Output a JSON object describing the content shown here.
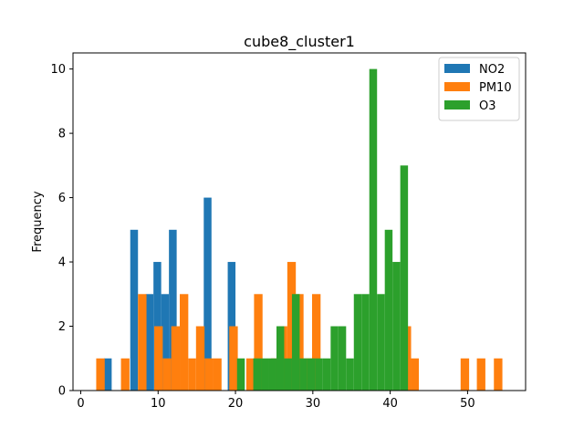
{
  "chart_data": {
    "type": "histogram",
    "title": "cube8_cluster1",
    "xlabel": "",
    "ylabel": "Frequency",
    "xlim": [
      -1,
      57.5
    ],
    "ylim": [
      0,
      10.5
    ],
    "xticks": [
      0,
      10,
      20,
      30,
      40,
      50
    ],
    "yticks": [
      0,
      2,
      4,
      6,
      8,
      10
    ],
    "grid": false,
    "legend_position": "top-right",
    "series": [
      {
        "name": "NO2",
        "color": "#1f77b4",
        "bins": [
          {
            "x0": 3.0,
            "x1": 4.0,
            "count": 1
          },
          {
            "x0": 6.4,
            "x1": 7.4,
            "count": 5
          },
          {
            "x0": 8.4,
            "x1": 9.4,
            "count": 3
          },
          {
            "x0": 9.4,
            "x1": 10.4,
            "count": 4
          },
          {
            "x0": 10.4,
            "x1": 11.4,
            "count": 3
          },
          {
            "x0": 11.4,
            "x1": 12.4,
            "count": 5
          },
          {
            "x0": 15.9,
            "x1": 16.9,
            "count": 6
          },
          {
            "x0": 19.0,
            "x1": 20.0,
            "count": 4
          }
        ]
      },
      {
        "name": "PM10",
        "color": "#ff7f0e",
        "bins": [
          {
            "x0": 2.0,
            "x1": 3.1,
            "count": 1
          },
          {
            "x0": 5.2,
            "x1": 6.3,
            "count": 1
          },
          {
            "x0": 7.4,
            "x1": 8.5,
            "count": 3
          },
          {
            "x0": 9.5,
            "x1": 10.6,
            "count": 2
          },
          {
            "x0": 10.6,
            "x1": 11.7,
            "count": 1
          },
          {
            "x0": 11.7,
            "x1": 12.8,
            "count": 2
          },
          {
            "x0": 12.8,
            "x1": 13.9,
            "count": 3
          },
          {
            "x0": 13.9,
            "x1": 14.9,
            "count": 1
          },
          {
            "x0": 14.9,
            "x1": 16.0,
            "count": 2
          },
          {
            "x0": 16.0,
            "x1": 17.1,
            "count": 1
          },
          {
            "x0": 17.1,
            "x1": 18.2,
            "count": 1
          },
          {
            "x0": 19.2,
            "x1": 20.3,
            "count": 2
          },
          {
            "x0": 21.4,
            "x1": 22.4,
            "count": 1
          },
          {
            "x0": 22.4,
            "x1": 23.5,
            "count": 3
          },
          {
            "x0": 24.6,
            "x1": 25.6,
            "count": 1
          },
          {
            "x0": 25.6,
            "x1": 26.7,
            "count": 2
          },
          {
            "x0": 26.7,
            "x1": 27.8,
            "count": 4
          },
          {
            "x0": 27.8,
            "x1": 28.8,
            "count": 3
          },
          {
            "x0": 28.8,
            "x1": 29.9,
            "count": 1
          },
          {
            "x0": 29.9,
            "x1": 31.0,
            "count": 3
          },
          {
            "x0": 41.6,
            "x1": 42.7,
            "count": 2
          },
          {
            "x0": 42.7,
            "x1": 43.7,
            "count": 1
          },
          {
            "x0": 49.1,
            "x1": 50.2,
            "count": 1
          },
          {
            "x0": 51.2,
            "x1": 52.3,
            "count": 1
          },
          {
            "x0": 53.4,
            "x1": 54.5,
            "count": 1
          }
        ]
      },
      {
        "name": "O3",
        "color": "#2ca02c",
        "bins": [
          {
            "x0": 20.2,
            "x1": 21.2,
            "count": 1
          },
          {
            "x0": 22.3,
            "x1": 23.3,
            "count": 1
          },
          {
            "x0": 23.3,
            "x1": 24.3,
            "count": 1
          },
          {
            "x0": 24.3,
            "x1": 25.3,
            "count": 1
          },
          {
            "x0": 25.3,
            "x1": 26.3,
            "count": 2
          },
          {
            "x0": 26.3,
            "x1": 27.3,
            "count": 1
          },
          {
            "x0": 27.3,
            "x1": 28.3,
            "count": 3
          },
          {
            "x0": 28.3,
            "x1": 29.3,
            "count": 1
          },
          {
            "x0": 29.3,
            "x1": 30.3,
            "count": 1
          },
          {
            "x0": 30.3,
            "x1": 31.3,
            "count": 1
          },
          {
            "x0": 31.3,
            "x1": 32.3,
            "count": 1
          },
          {
            "x0": 32.3,
            "x1": 33.3,
            "count": 2
          },
          {
            "x0": 33.3,
            "x1": 34.3,
            "count": 2
          },
          {
            "x0": 34.3,
            "x1": 35.3,
            "count": 1
          },
          {
            "x0": 35.3,
            "x1": 36.3,
            "count": 3
          },
          {
            "x0": 36.3,
            "x1": 37.3,
            "count": 3
          },
          {
            "x0": 37.3,
            "x1": 38.3,
            "count": 10
          },
          {
            "x0": 38.3,
            "x1": 39.3,
            "count": 3
          },
          {
            "x0": 39.3,
            "x1": 40.3,
            "count": 5
          },
          {
            "x0": 40.3,
            "x1": 41.3,
            "count": 4
          },
          {
            "x0": 41.3,
            "x1": 42.3,
            "count": 7
          }
        ]
      }
    ]
  }
}
